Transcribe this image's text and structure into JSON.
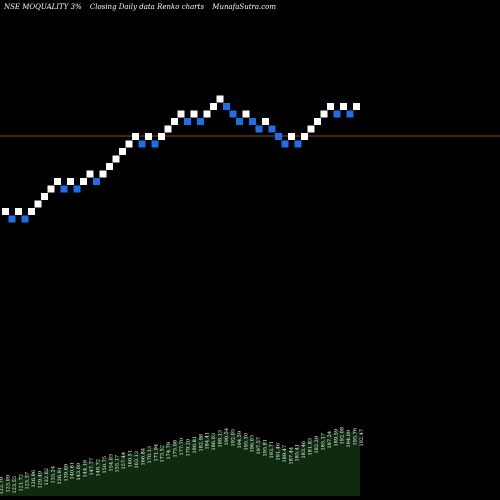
{
  "header": {
    "symbol": "NSE MOQUALITY 3%",
    "chart_kind": "Closing Daily data  Renko  charts",
    "site": "MunafaSutra.com"
  },
  "chart_data": {
    "type": "renko",
    "box_pct": 3,
    "up_color": "#ffffff",
    "down_color": "#1e6ee6",
    "reference_line_color": "#b5651d",
    "volume_color": "#0f2b0f",
    "bricks": [
      {
        "dir": "up",
        "level": 0
      },
      {
        "dir": "down",
        "level": -1
      },
      {
        "dir": "up",
        "level": 0
      },
      {
        "dir": "down",
        "level": -1
      },
      {
        "dir": "up",
        "level": 0
      },
      {
        "dir": "up",
        "level": 1
      },
      {
        "dir": "up",
        "level": 2
      },
      {
        "dir": "up",
        "level": 3
      },
      {
        "dir": "up",
        "level": 4
      },
      {
        "dir": "down",
        "level": 3
      },
      {
        "dir": "up",
        "level": 4
      },
      {
        "dir": "down",
        "level": 3
      },
      {
        "dir": "up",
        "level": 4
      },
      {
        "dir": "up",
        "level": 5
      },
      {
        "dir": "down",
        "level": 4
      },
      {
        "dir": "up",
        "level": 5
      },
      {
        "dir": "up",
        "level": 6
      },
      {
        "dir": "up",
        "level": 7
      },
      {
        "dir": "up",
        "level": 8
      },
      {
        "dir": "up",
        "level": 9
      },
      {
        "dir": "up",
        "level": 10
      },
      {
        "dir": "down",
        "level": 9
      },
      {
        "dir": "up",
        "level": 10
      },
      {
        "dir": "down",
        "level": 9
      },
      {
        "dir": "up",
        "level": 10
      },
      {
        "dir": "up",
        "level": 11
      },
      {
        "dir": "up",
        "level": 12
      },
      {
        "dir": "up",
        "level": 13
      },
      {
        "dir": "down",
        "level": 12
      },
      {
        "dir": "up",
        "level": 13
      },
      {
        "dir": "down",
        "level": 12
      },
      {
        "dir": "up",
        "level": 13
      },
      {
        "dir": "up",
        "level": 14
      },
      {
        "dir": "up",
        "level": 15
      },
      {
        "dir": "down",
        "level": 14
      },
      {
        "dir": "down",
        "level": 13
      },
      {
        "dir": "down",
        "level": 12
      },
      {
        "dir": "up",
        "level": 13
      },
      {
        "dir": "down",
        "level": 12
      },
      {
        "dir": "down",
        "level": 11
      },
      {
        "dir": "up",
        "level": 12
      },
      {
        "dir": "down",
        "level": 11
      },
      {
        "dir": "down",
        "level": 10
      },
      {
        "dir": "down",
        "level": 9
      },
      {
        "dir": "up",
        "level": 10
      },
      {
        "dir": "down",
        "level": 9
      },
      {
        "dir": "up",
        "level": 10
      },
      {
        "dir": "up",
        "level": 11
      },
      {
        "dir": "up",
        "level": 12
      },
      {
        "dir": "up",
        "level": 13
      },
      {
        "dir": "up",
        "level": 14
      },
      {
        "dir": "down",
        "level": 13
      },
      {
        "dir": "up",
        "level": 14
      },
      {
        "dir": "down",
        "level": 13
      },
      {
        "dir": "up",
        "level": 14
      }
    ],
    "volume_labels": [
      "122.79",
      "123.09",
      "123.55",
      "121.72",
      "125.37",
      "126.96",
      "129.49",
      "132.62",
      "135.24",
      "136.91",
      "139.69",
      "140.61",
      "143.09",
      "144.18",
      "147.77",
      "148.72",
      "150.75",
      "154.03",
      "155.17",
      "157.44",
      "160.51",
      "163.13",
      "166.84",
      "170.13",
      "171.94",
      "173.52",
      "174.79",
      "175.08",
      "177.70",
      "179.20",
      "180.81",
      "182.98",
      "184.41",
      "186.03",
      "188.13",
      "190.54",
      "192.05",
      "194.59",
      "195.30",
      "196.03",
      "197.57",
      "195.81",
      "193.71",
      "191.46",
      "189.47",
      "187.44",
      "185.41",
      "183.46",
      "181.83",
      "182.29",
      "185.17",
      "187.24",
      "189.59",
      "192.08",
      "194.09",
      "195.76",
      "192.47"
    ],
    "volume_values": [
      16,
      18,
      17,
      19,
      21,
      23,
      22,
      25,
      27,
      26,
      29,
      31,
      30,
      33,
      35,
      34,
      37,
      39,
      38,
      41,
      43,
      42,
      45,
      47,
      49,
      48,
      51,
      53,
      55,
      54,
      57,
      59,
      61,
      60,
      63,
      65,
      64,
      62,
      60,
      58,
      56,
      54,
      52,
      50,
      48,
      46,
      49,
      52,
      55,
      57,
      60,
      62,
      64,
      66,
      63,
      65,
      64
    ]
  }
}
